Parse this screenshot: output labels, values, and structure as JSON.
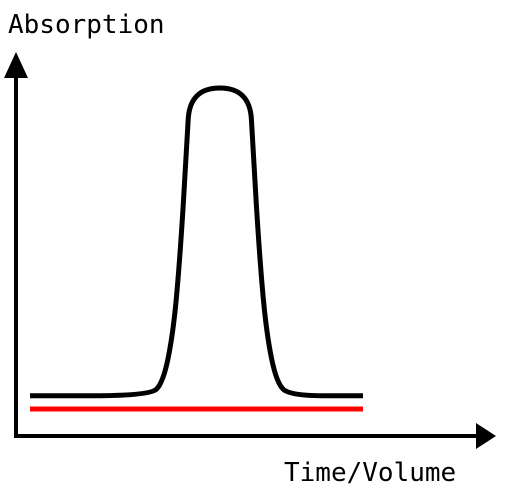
{
  "chart_data": {
    "type": "line",
    "title": "",
    "xlabel": "Time/Volume",
    "ylabel": "Absorption",
    "grid": false,
    "legend": "none",
    "series": [
      {
        "color": "#000000",
        "points": [
          [
            0.0,
            0.04
          ],
          [
            0.36,
            0.04
          ],
          [
            0.4,
            0.08
          ],
          [
            0.43,
            0.23
          ],
          [
            0.45,
            0.45
          ],
          [
            0.47,
            0.78
          ],
          [
            0.48,
            0.97
          ],
          [
            0.66,
            0.97
          ],
          [
            0.67,
            0.78
          ],
          [
            0.69,
            0.45
          ],
          [
            0.71,
            0.23
          ],
          [
            0.74,
            0.08
          ],
          [
            0.78,
            0.04
          ],
          [
            1.0,
            0.04
          ]
        ]
      },
      {
        "color": "#ff0000",
        "points": [
          [
            0.0,
            0.0
          ],
          [
            1.0,
            0.0
          ]
        ]
      }
    ]
  }
}
